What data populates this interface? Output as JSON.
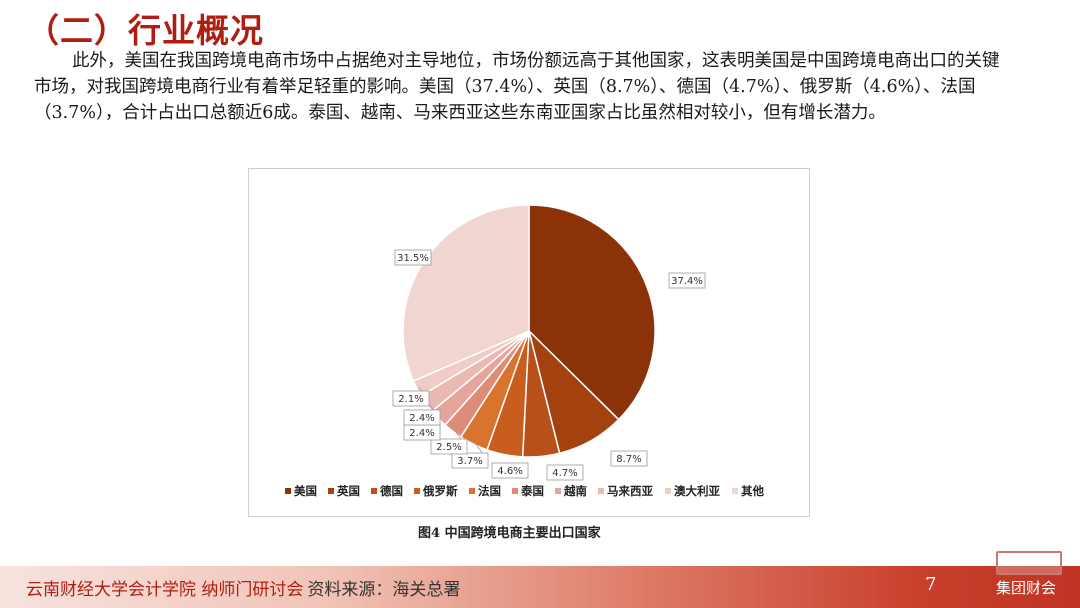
{
  "slide": {
    "title": "（二）行业概况",
    "paragraph": "此外，美国在我国跨境电商市场中占据绝对主导地位，市场份额远高于其他国家，这表明美国是中国跨境电商出口的关键市场，对我国跨境电商行业有着举足轻重的影响。美国（37.4%）、英国（8.7%）、德国（4.7%）、俄罗斯（4.6%）、法国（3.7%），合计占出口总额近6成。泰国、越南、马来西亚这些东南亚国家占比虽然相对较小，但有增长潜力。",
    "caption": "图4  中国跨境电商主要出口国家"
  },
  "footer": {
    "org": "云南财经大学会计学院  纳师门研讨会",
    "source": "资料来源：海关总署",
    "page_number": "7",
    "brand": "集团财会"
  },
  "chart_data": {
    "type": "pie",
    "categories": [
      "美国",
      "英国",
      "德国",
      "俄罗斯",
      "法国",
      "泰国",
      "越南",
      "马来西亚",
      "澳大利亚",
      "其他"
    ],
    "values": [
      37.4,
      8.7,
      4.7,
      4.6,
      3.7,
      2.5,
      2.4,
      2.4,
      2.1,
      31.5
    ],
    "data_labels": [
      "37.4%",
      "8.7%",
      "4.7%",
      "4.6%",
      "3.7%",
      "2.5%",
      "2.4%",
      "2.4%",
      "2.1%",
      "31.5%"
    ],
    "colors": [
      "#8b3209",
      "#a3420f",
      "#b8501a",
      "#c95d1e",
      "#d9742e",
      "#dd8c78",
      "#e5a59a",
      "#eab9b1",
      "#efccc6",
      "#f1d5d0"
    ],
    "legend_position": "bottom",
    "start_angle_deg": 0,
    "direction": "clockwise"
  }
}
